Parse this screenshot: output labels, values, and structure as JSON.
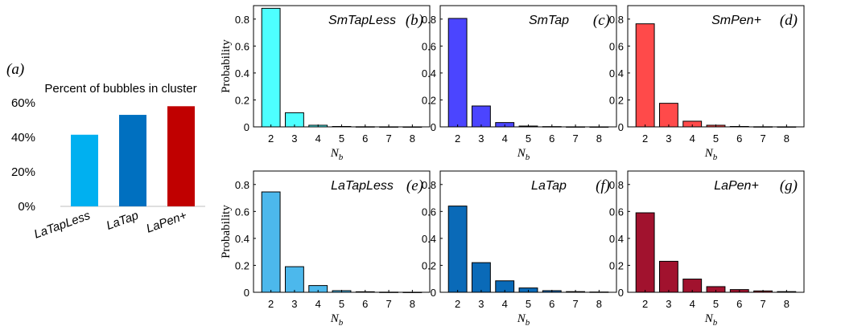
{
  "chart_data": [
    {
      "id": "a",
      "type": "bar",
      "panel_label": "(a)",
      "title": "Percent of bubbles in cluster",
      "categories": [
        "LaTapLess",
        "LaTap",
        "LaPen+"
      ],
      "values": [
        41.5,
        53,
        58
      ],
      "colors": [
        "#00b0f0",
        "#0070c0",
        "#c00000"
      ],
      "ylim": [
        0,
        60
      ],
      "yticks": [
        "0%",
        "20%",
        "40%",
        "60%"
      ],
      "ytick_values": [
        0,
        20,
        40,
        60
      ]
    },
    {
      "id": "b",
      "type": "bar",
      "panel_label": "(b)",
      "inset_label": "SmTapLess",
      "categories": [
        "2",
        "3",
        "4",
        "5",
        "6",
        "7",
        "8"
      ],
      "values": [
        0.88,
        0.105,
        0.012,
        0.003,
        0.001,
        0.0005,
        0.0002
      ],
      "color": "#4dffff",
      "ylim": [
        0,
        0.9
      ],
      "yticks": [
        "0",
        "0.2",
        "0.4",
        "0.6",
        "0.8"
      ],
      "ytick_values": [
        0,
        0.2,
        0.4,
        0.6,
        0.8
      ],
      "ylabel": "Probability",
      "xlabel": "N_b"
    },
    {
      "id": "c",
      "type": "bar",
      "panel_label": "(c)",
      "inset_label": "SmTap",
      "categories": [
        "2",
        "3",
        "4",
        "5",
        "6",
        "7",
        "8"
      ],
      "values": [
        0.805,
        0.155,
        0.032,
        0.006,
        0.002,
        0.0005,
        0.0002
      ],
      "color": "#4b45ff",
      "ylim": [
        0,
        0.9
      ],
      "yticks": [
        "0",
        "0.2",
        "0.4",
        "0.6",
        "0.8"
      ],
      "ytick_values": [
        0,
        0.2,
        0.4,
        0.6,
        0.8
      ],
      "xlabel": "N_b"
    },
    {
      "id": "d",
      "type": "bar",
      "panel_label": "(d)",
      "inset_label": "SmPen+",
      "categories": [
        "2",
        "3",
        "4",
        "5",
        "6",
        "7",
        "8"
      ],
      "values": [
        0.765,
        0.175,
        0.042,
        0.012,
        0.003,
        0.001,
        0.0005
      ],
      "color": "#ff4a4a",
      "ylim": [
        0,
        0.9
      ],
      "yticks": [
        "0",
        "0.2",
        "0.4",
        "0.6",
        "0.8"
      ],
      "ytick_values": [
        0,
        0.2,
        0.4,
        0.6,
        0.8
      ],
      "xlabel": "N_b"
    },
    {
      "id": "e",
      "type": "bar",
      "panel_label": "(e)",
      "inset_label": "LaTapLess",
      "categories": [
        "2",
        "3",
        "4",
        "5",
        "6",
        "7",
        "8"
      ],
      "values": [
        0.745,
        0.19,
        0.05,
        0.012,
        0.004,
        0.001,
        0.0005
      ],
      "color": "#4cb8ec",
      "ylim": [
        0,
        0.9
      ],
      "yticks": [
        "0",
        "0.2",
        "0.4",
        "0.6",
        "0.8"
      ],
      "ytick_values": [
        0,
        0.2,
        0.4,
        0.6,
        0.8
      ],
      "ylabel": "Probability",
      "xlabel": "N_b"
    },
    {
      "id": "f",
      "type": "bar",
      "panel_label": "(f)",
      "inset_label": "LaTap",
      "categories": [
        "2",
        "3",
        "4",
        "5",
        "6",
        "7",
        "8"
      ],
      "values": [
        0.64,
        0.22,
        0.085,
        0.032,
        0.012,
        0.005,
        0.002
      ],
      "color": "#0a6ab8",
      "ylim": [
        0,
        0.9
      ],
      "yticks": [
        "0",
        "0.2",
        "0.4",
        "0.6",
        "0.8"
      ],
      "ytick_values": [
        0,
        0.2,
        0.4,
        0.6,
        0.8
      ],
      "xlabel": "N_b"
    },
    {
      "id": "g",
      "type": "bar",
      "panel_label": "(g)",
      "inset_label": "LaPen+",
      "categories": [
        "2",
        "3",
        "4",
        "5",
        "6",
        "7",
        "8"
      ],
      "values": [
        0.59,
        0.23,
        0.098,
        0.042,
        0.02,
        0.01,
        0.005
      ],
      "color": "#a1122e",
      "ylim": [
        0,
        0.9
      ],
      "yticks": [
        "0",
        "0.2",
        "0.4",
        "0.6",
        "0.8"
      ],
      "ytick_values": [
        0,
        0.2,
        0.4,
        0.6,
        0.8
      ],
      "xlabel": "N_b"
    }
  ]
}
